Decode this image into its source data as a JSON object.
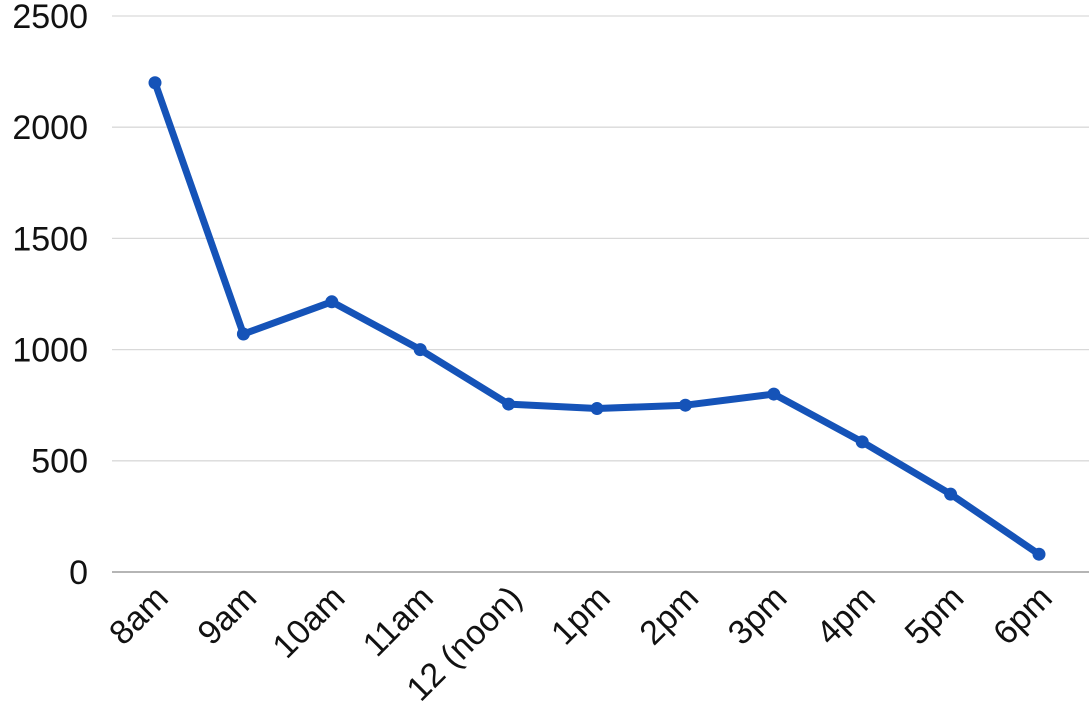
{
  "chart_data": {
    "type": "line",
    "title": "",
    "categories": [
      "8am",
      "9am",
      "10am",
      "11am",
      "12 (noon)",
      "1pm",
      "2pm",
      "3pm",
      "4pm",
      "5pm",
      "6pm"
    ],
    "series": [
      {
        "name": "series-1",
        "values": [
          2200,
          1070,
          1215,
          1000,
          755,
          735,
          750,
          800,
          585,
          350,
          80
        ]
      }
    ],
    "xlabel": "",
    "ylabel": "",
    "ylim": [
      0,
      2500
    ],
    "y_ticks": [
      0,
      500,
      1000,
      1500,
      2000,
      2500
    ],
    "grid": true,
    "legend_position": "none",
    "colors": {
      "line": "#1553b8",
      "marker": "#1553b8",
      "gridline": "#d9d9d9",
      "zero_gridline": "#b5b5b5",
      "tick_label": "#111111",
      "background": "#ffffff"
    }
  }
}
